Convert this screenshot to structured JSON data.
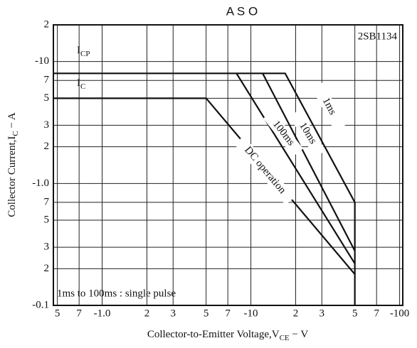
{
  "chart_data": {
    "type": "line",
    "title": "A S O",
    "x_label": {
      "main": "Collector-to-Emitter Voltage,V",
      "sub": "CE",
      "tail": " − V"
    },
    "y_label": {
      "main": "Collector Current,I",
      "sub": "C",
      "tail": " − A"
    },
    "part_number": "2SB1134",
    "note": "1ms to 100ms : single pulse",
    "x_scale": "log",
    "y_scale": "log",
    "grid": true,
    "color": "#111111",
    "xlim": [
      0.47,
      105
    ],
    "ylim": [
      0.1,
      20
    ],
    "xticks": [
      {
        "value": 0.5,
        "label": "5"
      },
      {
        "value": 0.7,
        "label": "7"
      },
      {
        "value": 1,
        "label": "-1.0"
      },
      2,
      3,
      {
        "value": 5,
        "label": "5"
      },
      {
        "value": 7,
        "label": "7"
      },
      {
        "value": 10,
        "label": "-10"
      },
      {
        "value": 20,
        "label": "2"
      },
      {
        "value": 30,
        "label": "3"
      },
      {
        "value": 50,
        "label": "5"
      },
      {
        "value": 70,
        "label": "7"
      },
      {
        "value": 100,
        "label": "-100"
      }
    ],
    "yticks": [
      {
        "value": 0.1,
        "label": "-0.1"
      },
      {
        "value": 0.2,
        "label": "2"
      },
      {
        "value": 0.3,
        "label": "3"
      },
      {
        "value": 0.5,
        "label": "5"
      },
      {
        "value": 0.7,
        "label": "7"
      },
      {
        "value": 1,
        "label": "-1.0"
      },
      2,
      3,
      5,
      7,
      {
        "value": 10,
        "label": "-10"
      },
      {
        "value": 20,
        "label": "2"
      }
    ],
    "limit_labels": [
      {
        "main": "I",
        "sub": "CP"
      },
      {
        "main": "I",
        "sub": "C"
      }
    ],
    "series": [
      {
        "name": "1ms",
        "x": [
          0.47,
          17,
          50,
          50
        ],
        "values": [
          8,
          8,
          0.7,
          0.1
        ]
      },
      {
        "name": "10ms",
        "x": [
          12,
          50
        ],
        "values": [
          8,
          0.28
        ]
      },
      {
        "name": "100ms",
        "x": [
          8,
          50
        ],
        "values": [
          8,
          0.22
        ]
      },
      {
        "name": "DC operation",
        "x": [
          0.47,
          5,
          50
        ],
        "values": [
          5,
          5,
          0.18
        ]
      }
    ]
  }
}
